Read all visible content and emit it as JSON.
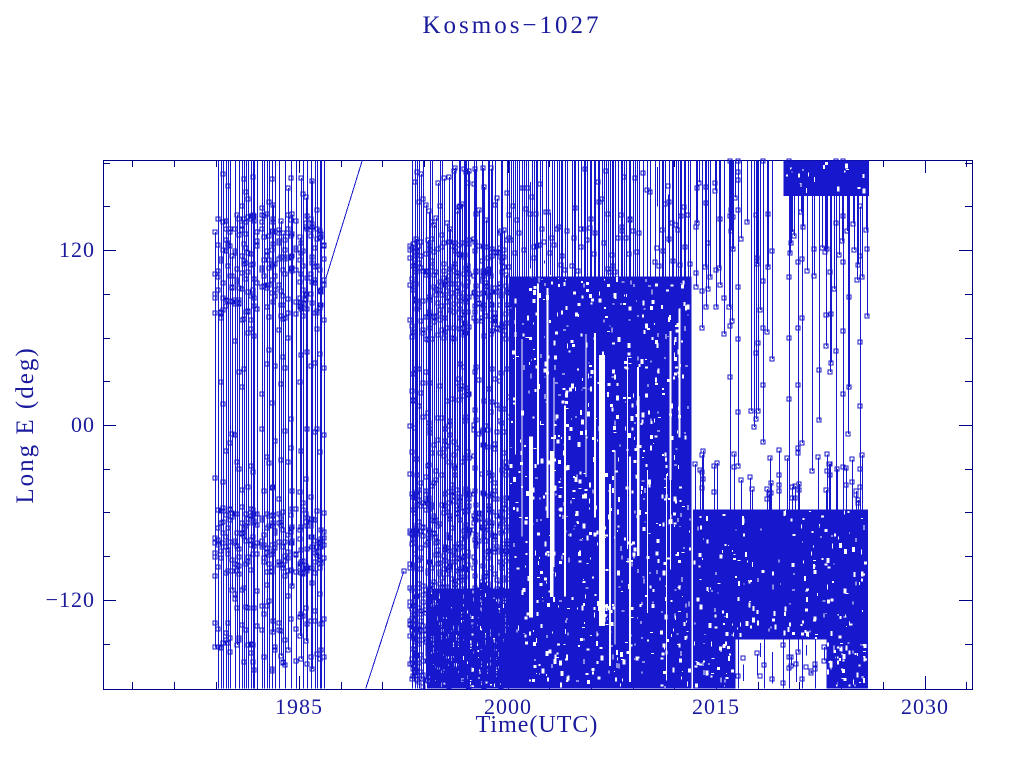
{
  "title": "Kosmos−1027",
  "colors": {
    "background": "#ffffff",
    "axis_navy": "#000082",
    "text_blue": "#1a1a9c",
    "data_blue": "#1717cd"
  },
  "chart_data": {
    "type": "scatter",
    "title": "Kosmos−1027",
    "xlabel": "Time(UTC)",
    "ylabel": "Long E (deg)",
    "xlim": [
      1971.0,
      2033.4
    ],
    "ylim": [
      -182,
      182
    ],
    "grid": false,
    "legend": "none",
    "marker": "open-square",
    "x_major_ticks": [
      {
        "value": 1985,
        "label": "1985"
      },
      {
        "value": 2000,
        "label": "2000"
      },
      {
        "value": 2015,
        "label": "2015"
      },
      {
        "value": 2030,
        "label": "2030"
      }
    ],
    "x_minor_step_years": 3,
    "y_major_ticks": [
      {
        "value": 120,
        "label": "120"
      },
      {
        "value": 0,
        "label": "00"
      },
      {
        "value": -120,
        "label": "−120"
      }
    ],
    "y_minor_step_deg": 30,
    "data_extent": {
      "time_utc_years": [
        1979.0,
        2026.2
      ],
      "long_e_deg": [
        -180,
        180
      ]
    },
    "description": "Geographic longitude (deg E) history of Kosmos-1027 vs time. Dense vertical excursions 1979-1987 with station clusters near +75..+145 and -55..-105 deg; slow eastward drift 1987-1993 wrapping from +100 through +180/-180 to -100; very dense activity 1993-2013 covering most longitudes; after 2013 a solid residence band at -58..-148 deg; from 2020 an additional solid band near +157..+180 deg; sparse long excursions through 2026.",
    "elements": [
      {
        "kind": "columns",
        "label": "operations 1979-1987",
        "t": [
          1978.95,
          1986.9
        ],
        "count": 48,
        "full_height_frac": 0.66,
        "skip": 0.05,
        "bands": [
          {
            "deg": [
              72,
              145
            ],
            "mk": 5.5
          },
          {
            "deg": [
              145,
              178
            ],
            "mk": 0.5
          },
          {
            "deg": [
              2,
              70
            ],
            "mk": 0.6
          },
          {
            "deg": [
              -54,
              -2
            ],
            "mk": 0.7
          },
          {
            "deg": [
              -56,
              -104
            ],
            "mk": 4.5
          },
          {
            "deg": [
              -106,
              -170
            ],
            "mk": 1.8
          }
        ]
      },
      {
        "kind": "drift",
        "label": "drift wrap up 1987-1990",
        "points": [
          [
            1986.95,
            101
          ],
          [
            1989.55,
            182
          ]
        ],
        "end_marker": false
      },
      {
        "kind": "drift",
        "label": "drift wrap down 1990-1993",
        "points": [
          [
            1989.8,
            -182
          ],
          [
            1992.55,
            -100
          ]
        ],
        "end_marker": true
      },
      {
        "kind": "fill",
        "label": "dense low band 1994-2000",
        "t": [
          1994.2,
          2000.1
        ],
        "deg": [
          -112,
          -182
        ],
        "noise": 0.22
      },
      {
        "kind": "columns",
        "label": "operations 1993-2000",
        "t": [
          1992.9,
          2000.15
        ],
        "count": 62,
        "full_height_frac": 0.5,
        "skip": 0.04,
        "bands": [
          {
            "deg": [
              58,
              128
            ],
            "mk": 4.5
          },
          {
            "deg": [
              128,
              179
            ],
            "mk": 0.7
          },
          {
            "deg": [
              -42,
              42
            ],
            "mk": 2.2
          },
          {
            "deg": [
              -44,
              -118
            ],
            "mk": 5.5
          },
          {
            "deg": [
              -120,
              -180
            ],
            "mk": 7.0
          }
        ]
      },
      {
        "kind": "fill",
        "label": "solid era 2000-2013",
        "t": [
          2000.15,
          2013.25
        ],
        "deg": [
          -182,
          102
        ],
        "noise": 0.09,
        "white_columns": 18,
        "gaps": [
          [
            2001.55,
            2001.85,
            -8,
            -132
          ],
          [
            2003.05,
            2003.3,
            -18,
            -118
          ],
          [
            2006.6,
            2007.0,
            48,
            -138
          ],
          [
            2009.3,
            2009.5,
            20,
            -90
          ]
        ]
      },
      {
        "kind": "columns",
        "label": "upper strip 2000-2013",
        "t": [
          2000.2,
          2013.2
        ],
        "count": 88,
        "full_height_frac": 0.88,
        "skip": 0.06,
        "span_deg": [
          100,
          182
        ],
        "bands": [
          {
            "deg": [
              104,
              178
            ],
            "mk": 1.1
          }
        ]
      },
      {
        "kind": "fill",
        "label": "residence band 2013-2026",
        "t": [
          2013.35,
          2025.95
        ],
        "deg": [
          -58,
          -147
        ],
        "noise": 0.07
      },
      {
        "kind": "fill",
        "label": "deep band 2013-2016",
        "t": [
          2013.35,
          2016.4
        ],
        "deg": [
          -147,
          -182
        ],
        "noise": 0.14
      },
      {
        "kind": "fill",
        "label": "deep band 2023-2026",
        "t": [
          2022.95,
          2025.95
        ],
        "deg": [
          -147,
          -182
        ],
        "noise": 0.2
      },
      {
        "kind": "columns",
        "label": "deep sparse 2016-2023",
        "t": [
          2016.5,
          2022.9
        ],
        "count": 20,
        "full_height_frac": 0.45,
        "skip": 0.05,
        "span_deg": [
          -147,
          -182
        ],
        "bands": [
          {
            "deg": [
              -150,
              -180
            ],
            "mk": 1.4
          }
        ]
      },
      {
        "kind": "lollipops",
        "label": "spikes above band",
        "t": [
          2013.45,
          2025.8
        ],
        "count": 34,
        "anchor_deg": -58,
        "tip_deg": [
          -16,
          -52
        ],
        "mid_markers": true
      },
      {
        "kind": "lollipops",
        "label": "hangers 2013-2018",
        "t": [
          2013.45,
          2018.0
        ],
        "count": 26,
        "anchor_deg": 182,
        "tip_deg": [
          55,
          172
        ],
        "mid_markers": true
      },
      {
        "kind": "lollipops",
        "label": "mid floaters 2017-2020",
        "t": [
          2017.3,
          2019.8
        ],
        "count": 9,
        "anchor_deg": 182,
        "tip_deg": [
          -40,
          120
        ],
        "mid_markers": true
      },
      {
        "kind": "fill",
        "label": "top band 2020-2026",
        "t": [
          2019.85,
          2026.0
        ],
        "deg": [
          157,
          182
        ],
        "noise": 0.06
      },
      {
        "kind": "lollipops",
        "label": "hangers from top band",
        "t": [
          2019.95,
          2025.9
        ],
        "count": 26,
        "anchor_deg": 157,
        "tip_deg": [
          92,
          152
        ],
        "mid_markers": false
      },
      {
        "kind": "lollipops",
        "label": "deep hangers from top band",
        "t": [
          2019.95,
          2025.9
        ],
        "count": 12,
        "anchor_deg": 157,
        "tip_deg": [
          -42,
          88
        ],
        "mid_markers": true
      },
      {
        "kind": "tall_lines",
        "label": "isolated long excursions",
        "markers_every_deg": 46,
        "lines": [
          [
            2016.0,
            182,
            -96
          ],
          [
            2016.55,
            182,
            -28
          ],
          [
            2018.35,
            182,
            -12
          ],
          [
            2020.25,
            182,
            -122
          ],
          [
            2020.9,
            164,
            -156
          ],
          [
            2023.6,
            182,
            -178
          ],
          [
            2024.15,
            182,
            -64
          ],
          [
            2025.35,
            150,
            -150
          ]
        ]
      }
    ]
  }
}
